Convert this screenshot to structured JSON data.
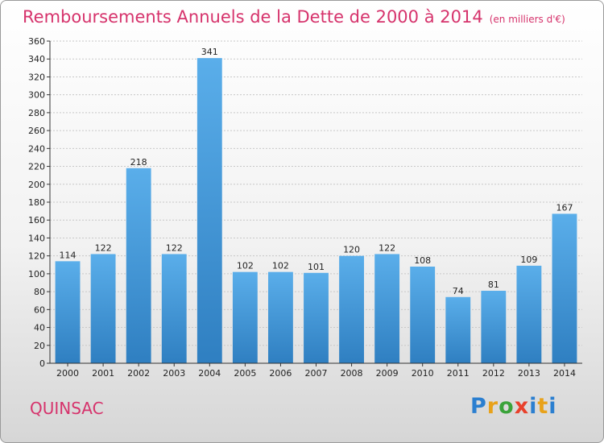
{
  "header": {
    "title": "Remboursements Annuels de la Dette de 2000 à 2014",
    "unit": "(en milliers d'€)"
  },
  "footer": {
    "commune": "QUINSAC",
    "logo_letters": [
      "P",
      "r",
      "o",
      "x",
      "i",
      "t",
      "i"
    ]
  },
  "colors": {
    "title": "#d6336c",
    "bar_top": "#5aaeea",
    "bar_bottom": "#2f7fc1"
  },
  "chart_data": {
    "type": "bar",
    "title": "Remboursements Annuels de la Dette de 2000 à 2014",
    "categories": [
      "2000",
      "2001",
      "2002",
      "2003",
      "2004",
      "2005",
      "2006",
      "2007",
      "2008",
      "2009",
      "2010",
      "2011",
      "2012",
      "2013",
      "2014"
    ],
    "values": [
      114,
      122,
      218,
      122,
      341,
      102,
      102,
      101,
      120,
      122,
      108,
      74,
      81,
      109,
      167
    ],
    "ylim": [
      0,
      360
    ],
    "ytick_step": 20,
    "grid": true,
    "data_labels": true
  }
}
